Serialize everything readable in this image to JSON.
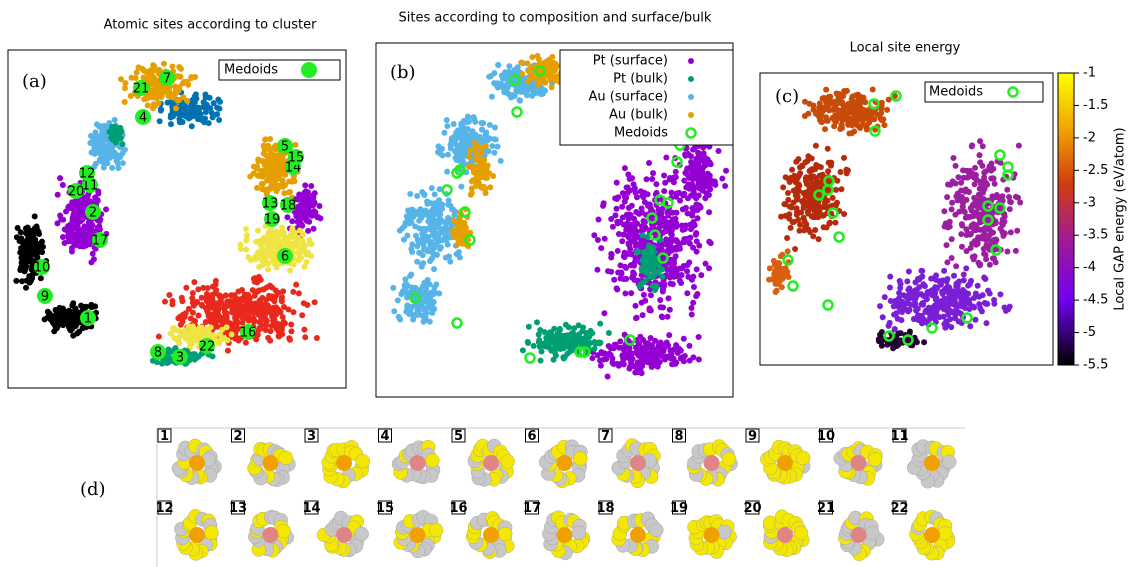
{
  "panel_a": {
    "title": "Atomic sites according to cluster",
    "label": "(a)",
    "legend": "Medoids",
    "medoids": [
      "1",
      "2",
      "3",
      "4",
      "5",
      "6",
      "7",
      "8",
      "9",
      "10",
      "11",
      "12",
      "13",
      "14",
      "15",
      "16",
      "17",
      "18",
      "19",
      "20",
      "21",
      "22"
    ]
  },
  "panel_b": {
    "title": "Sites according to composition and surface/bulk",
    "label": "(b)",
    "legend": [
      "Pt (surface)",
      "Pt (bulk)",
      "Au (surface)",
      "Au (bulk)",
      "Medoids"
    ]
  },
  "panel_c": {
    "title": "Local site energy",
    "label": "(c)",
    "legend": "Medoids",
    "colorbar": {
      "label": "Local GAP energy (eV/atom)",
      "lim": [
        -1,
        -5.5
      ],
      "ticks": [
        -1,
        -1.5,
        -2,
        -2.5,
        -3,
        -3.5,
        -4,
        -4.5,
        -5,
        -5.5
      ]
    }
  },
  "panel_d": {
    "label": "(d)",
    "structures": [
      "1",
      "2",
      "3",
      "4",
      "5",
      "6",
      "7",
      "8",
      "9",
      "10",
      "11",
      "12",
      "13",
      "14",
      "15",
      "16",
      "17",
      "18",
      "19",
      "20",
      "21",
      "22"
    ]
  }
}
